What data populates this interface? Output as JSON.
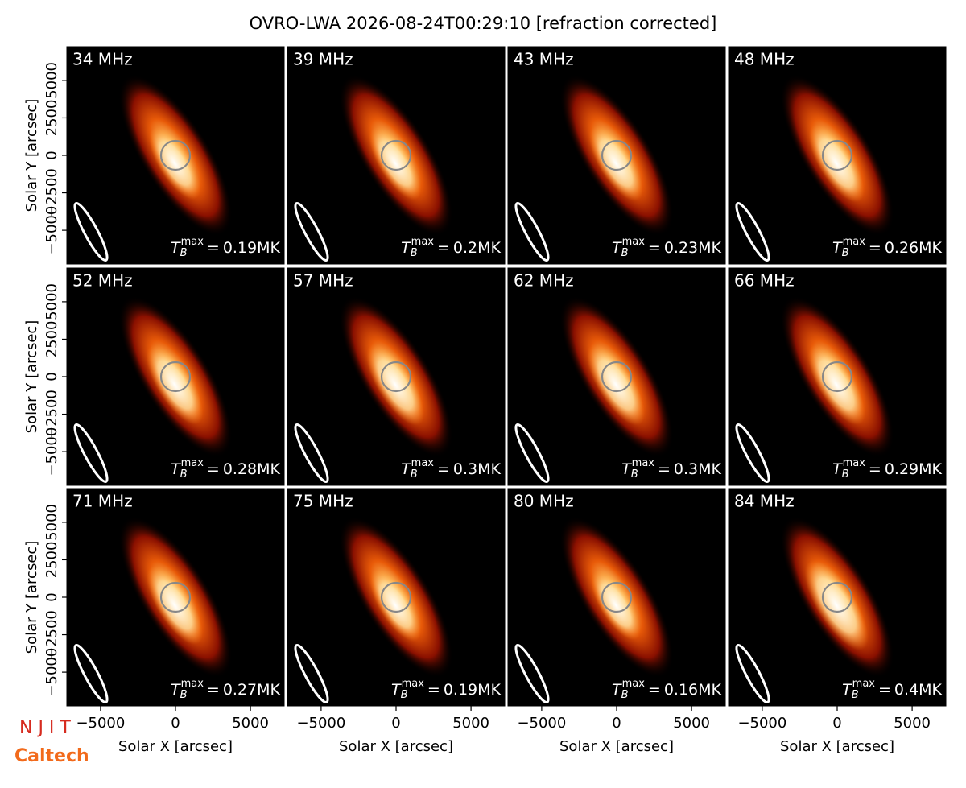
{
  "chart_data": {
    "type": "image",
    "title": "OVRO-LWA 2026-08-24T00:29:10 [refraction corrected]",
    "x_label": "Solar X [arcsec]",
    "y_label": "Solar Y [arcsec]",
    "xlim": [
      -7250,
      7250
    ],
    "ylim": [
      -7250,
      7250
    ],
    "xticks": [
      {
        "value": -5000,
        "label": "−5000"
      },
      0,
      5000
    ],
    "yticks": [
      {
        "value": -5000,
        "label": "−5000"
      },
      {
        "value": -2500,
        "label": "−2500"
      },
      0,
      2500,
      5000
    ],
    "tb_label": {
      "base": "T",
      "sub": "B",
      "sup": "max",
      "eq": "="
    },
    "panels": [
      {
        "label": "34 MHz",
        "value": 0.19,
        "value_label": "0.19MK"
      },
      {
        "label": "39 MHz",
        "value": 0.2,
        "value_label": "0.2MK"
      },
      {
        "label": "43 MHz",
        "value": 0.23,
        "value_label": "0.23MK"
      },
      {
        "label": "48 MHz",
        "value": 0.26,
        "value_label": "0.26MK"
      },
      {
        "label": "52 MHz",
        "value": 0.28,
        "value_label": "0.28MK"
      },
      {
        "label": "57 MHz",
        "value": 0.3,
        "value_label": "0.3MK"
      },
      {
        "label": "62 MHz",
        "value": 0.3,
        "value_label": "0.3MK"
      },
      {
        "label": "66 MHz",
        "value": 0.29,
        "value_label": "0.29MK"
      },
      {
        "label": "71 MHz",
        "value": 0.27,
        "value_label": "0.27MK"
      },
      {
        "label": "75 MHz",
        "value": 0.19,
        "value_label": "0.19MK"
      },
      {
        "label": "80 MHz",
        "value": 0.16,
        "value_label": "0.16MK"
      },
      {
        "label": "84 MHz",
        "value": 0.4,
        "value_label": "0.4MK"
      }
    ],
    "logos": [
      "N J I T",
      "Caltech"
    ]
  }
}
